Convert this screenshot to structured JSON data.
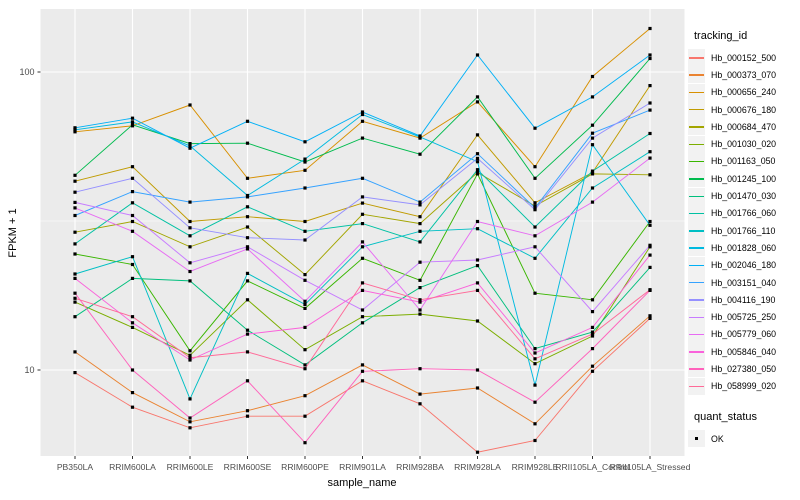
{
  "figure": {
    "bg": "#FFFFFF",
    "panel_bg": "#EBEBEB",
    "grid_color": "#FFFFFF",
    "tick_text_color": "#4D4D4D",
    "axis_title_color": "#000000",
    "tick_mark_color": "#333333",
    "legend_key_bg": "#F2F2F2",
    "point_color": "#000000",
    "point_shape": "filled-square"
  },
  "chart_data": {
    "type": "line",
    "xlabel": "sample_name",
    "ylabel": "FPKM + 1",
    "y_scale": "log10",
    "y_ticks": [
      10,
      100
    ],
    "y_minor_ticks": [
      31.6
    ],
    "y_range_approx": [
      5.2,
      170
    ],
    "grid": true,
    "legend_position": "right",
    "legend_title": "tracking_id",
    "legend2_title": "quant_status",
    "legend2_items": [
      "OK"
    ],
    "categories": [
      "PB350LA",
      "RRIM600LA",
      "RRIM600LE",
      "RRIM600SE",
      "RRIM600PE",
      "RRIM901LA",
      "RRIM928BA",
      "RRIM928LA",
      "RRIM928LE",
      "RRII105LA_Control",
      "RRII105LA_Stressed"
    ],
    "series": [
      {
        "name": "Hb_000152_500",
        "color": "#F8766D",
        "values": [
          9.8,
          7.5,
          6.4,
          7.0,
          7.0,
          9.2,
          7.7,
          5.3,
          5.8,
          9.9,
          14.9
        ]
      },
      {
        "name": "Hb_000373_070",
        "color": "#EA8331",
        "values": [
          11.5,
          8.4,
          6.7,
          7.3,
          8.2,
          10.4,
          8.3,
          8.7,
          6.6,
          10.3,
          15.2
        ]
      },
      {
        "name": "Hb_000656_240",
        "color": "#D89000",
        "values": [
          63,
          66,
          77.5,
          44,
          46.8,
          68.3,
          60,
          79.4,
          48.1,
          96.6,
          140
        ]
      },
      {
        "name": "Hb_000676_180",
        "color": "#C09B00",
        "values": [
          43,
          48.1,
          31.5,
          32.7,
          31.5,
          36.3,
          32.7,
          61.5,
          36.4,
          46,
          90
        ]
      },
      {
        "name": "Hb_000684_470",
        "color": "#A3A500",
        "values": [
          29,
          31.5,
          25.9,
          30.2,
          20.9,
          33.3,
          31,
          46,
          35.5,
          45.5,
          45.2
        ]
      },
      {
        "name": "Hb_001030_020",
        "color": "#7CAE00",
        "values": [
          16.9,
          13.9,
          11.2,
          17.2,
          11.7,
          15.1,
          15.4,
          14.6,
          10.5,
          13,
          25.9
        ]
      },
      {
        "name": "Hb_001163_050",
        "color": "#39B600",
        "values": [
          24.5,
          22.6,
          11.6,
          19.9,
          16.1,
          23.7,
          20,
          45.5,
          18.1,
          17.2,
          31.5
        ]
      },
      {
        "name": "Hb_001245_100",
        "color": "#00BB4E",
        "values": [
          45,
          66.5,
          57.5,
          57.7,
          49.9,
          60,
          53,
          82.5,
          44,
          66.3,
          111
        ]
      },
      {
        "name": "Hb_001470_030",
        "color": "#00BF7D",
        "values": [
          15.1,
          20.3,
          19.9,
          13.6,
          10.4,
          14.4,
          18.9,
          22.4,
          11.8,
          13.4,
          22.1
        ]
      },
      {
        "name": "Hb_001766_060",
        "color": "#00C1A3",
        "values": [
          26.5,
          36.4,
          28.2,
          35.3,
          29.2,
          31,
          26.9,
          47,
          30.2,
          46.5,
          62.2
        ]
      },
      {
        "name": "Hb_001766_110",
        "color": "#00BFC4",
        "values": [
          21,
          24,
          8.0,
          21.1,
          16.6,
          25.9,
          29.2,
          29.8,
          23.7,
          40.8,
          54
        ]
      },
      {
        "name": "Hb_001828_060",
        "color": "#00BAE0",
        "values": [
          64,
          68,
          56.5,
          38.5,
          51,
          72,
          60.5,
          50,
          8.9,
          57,
          30.6
        ]
      },
      {
        "name": "Hb_002046_180",
        "color": "#00B0F6",
        "values": [
          65,
          70,
          55.5,
          68.3,
          58.3,
          73.4,
          61,
          114,
          64.8,
          82.5,
          114
        ]
      },
      {
        "name": "Hb_003151_040",
        "color": "#35A2FF",
        "values": [
          33,
          39.7,
          36.6,
          38.1,
          40.8,
          44,
          36.6,
          53.2,
          35,
          62.3,
          74.5
        ]
      },
      {
        "name": "Hb_004116_190",
        "color": "#9590FF",
        "values": [
          39.5,
          44,
          30,
          27.8,
          27.3,
          38.1,
          35.8,
          51.3,
          34.5,
          60,
          78.7
        ]
      },
      {
        "name": "Hb_005725_250",
        "color": "#C77CFF",
        "values": [
          36.5,
          33,
          22.9,
          25.9,
          20,
          15.9,
          23,
          23.4,
          25.9,
          15.7,
          26.2
        ]
      },
      {
        "name": "Hb_005779_060",
        "color": "#E76BF3",
        "values": [
          35,
          29.2,
          21.4,
          25.5,
          17,
          26.9,
          15.9,
          31.5,
          28.2,
          36.6,
          51.4
        ]
      },
      {
        "name": "Hb_005846_040",
        "color": "#FA62DB",
        "values": [
          20.3,
          14.4,
          10.8,
          13.2,
          13.9,
          18.5,
          16.9,
          19.6,
          11.4,
          13.9,
          24.3
        ]
      },
      {
        "name": "Hb_027380_050",
        "color": "#FF62BC",
        "values": [
          18.1,
          10,
          6.9,
          9.2,
          5.7,
          9.9,
          10.1,
          10,
          7.8,
          11.8,
          18.5
        ]
      },
      {
        "name": "Hb_058999_020",
        "color": "#FF6A98",
        "values": [
          17.4,
          15.1,
          11.0,
          11.5,
          10.1,
          19.6,
          17.2,
          18.5,
          10.9,
          13.2,
          18.6
        ]
      }
    ]
  }
}
